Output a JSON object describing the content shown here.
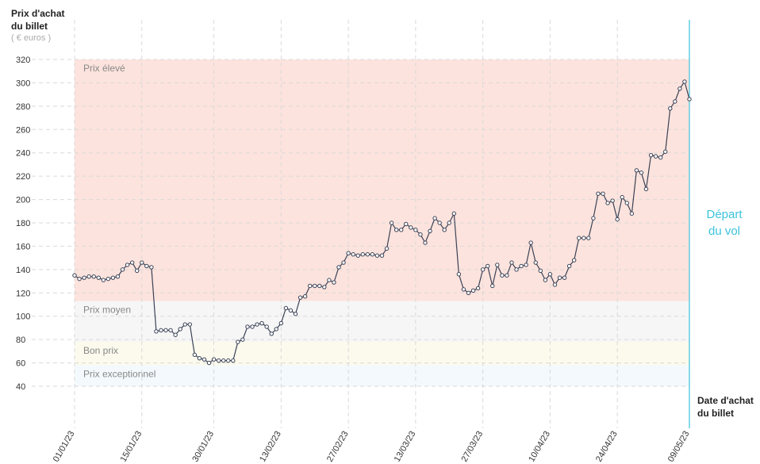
{
  "chart_data": {
    "type": "line",
    "y_title": [
      "Prix d'achat",
      "du billet"
    ],
    "y_unit": "( € euros )",
    "x_title": [
      "Date d'achat",
      "du billet"
    ],
    "categories": [
      "01/01/23",
      null,
      null,
      null,
      null,
      null,
      null,
      null,
      null,
      null,
      null,
      null,
      null,
      null,
      "15/01/23",
      null,
      null,
      null,
      null,
      null,
      null,
      null,
      null,
      null,
      null,
      null,
      null,
      null,
      null,
      "30/01/23",
      null,
      null,
      null,
      null,
      null,
      null,
      null,
      null,
      null,
      null,
      null,
      null,
      null,
      "13/02/23",
      null,
      null,
      null,
      null,
      null,
      null,
      null,
      null,
      null,
      null,
      null,
      null,
      null,
      "27/02/23",
      null,
      null,
      null,
      null,
      null,
      null,
      null,
      null,
      null,
      null,
      null,
      null,
      null,
      "13/03/23",
      null,
      null,
      null,
      null,
      null,
      null,
      null,
      null,
      null,
      null,
      null,
      null,
      null,
      "27/03/23",
      null,
      null,
      null,
      null,
      null,
      null,
      null,
      null,
      null,
      null,
      null,
      null,
      null,
      "10/04/23",
      null,
      null,
      null,
      null,
      null,
      null,
      null,
      null,
      null,
      null,
      null,
      null,
      null,
      "24/04/23",
      null,
      null,
      null,
      null,
      null,
      null,
      null,
      null,
      null,
      null,
      null,
      null,
      null,
      null,
      "09/05/23"
    ],
    "series": [
      {
        "name": "Prix",
        "color": "#3a4256",
        "values": [
          135,
          132,
          133,
          134,
          134,
          133,
          131,
          132,
          133,
          134,
          140,
          144,
          146,
          139,
          146,
          143,
          142,
          87,
          88,
          88,
          88,
          84,
          89,
          93,
          93,
          67,
          64,
          63,
          60,
          63,
          62,
          62,
          62,
          62,
          78,
          80,
          91,
          91,
          93,
          94,
          91,
          85,
          89,
          94,
          107,
          105,
          102,
          116,
          117,
          126,
          126,
          126,
          125,
          131,
          129,
          142,
          146,
          154,
          153,
          152,
          153,
          153,
          153,
          152,
          152,
          158,
          180,
          174,
          174,
          179,
          176,
          174,
          170,
          163,
          173,
          184,
          180,
          174,
          180,
          188,
          136,
          123,
          120,
          122,
          124,
          140,
          143,
          126,
          144,
          135,
          135,
          146,
          140,
          143,
          144,
          163,
          146,
          139,
          131,
          136,
          127,
          133,
          133,
          143,
          148,
          167,
          167,
          167,
          184,
          205,
          205,
          197,
          199,
          183,
          202,
          197,
          188,
          225,
          223,
          209,
          238,
          237,
          236,
          241,
          278,
          284,
          295,
          301,
          286
        ]
      }
    ],
    "zones": [
      {
        "name": "Prix élevé",
        "from": 113,
        "to": 320,
        "color": "#fde3dd"
      },
      {
        "name": "Prix moyen",
        "from": 78,
        "to": 113,
        "color": "#f6f6f6"
      },
      {
        "name": "Bon prix",
        "from": 58,
        "to": 78,
        "color": "#fbfaed"
      },
      {
        "name": "Prix exceptionnel",
        "from": 40,
        "to": 58,
        "color": "#f3f9fc"
      }
    ],
    "departure": {
      "index": 128,
      "label": [
        "Départ",
        "du vol"
      ],
      "color": "#3cc3dc"
    },
    "ylim": [
      40,
      320
    ],
    "yticks": [
      40,
      60,
      80,
      100,
      120,
      140,
      160,
      180,
      200,
      220,
      240,
      260,
      280,
      300,
      320
    ],
    "grid": true
  }
}
